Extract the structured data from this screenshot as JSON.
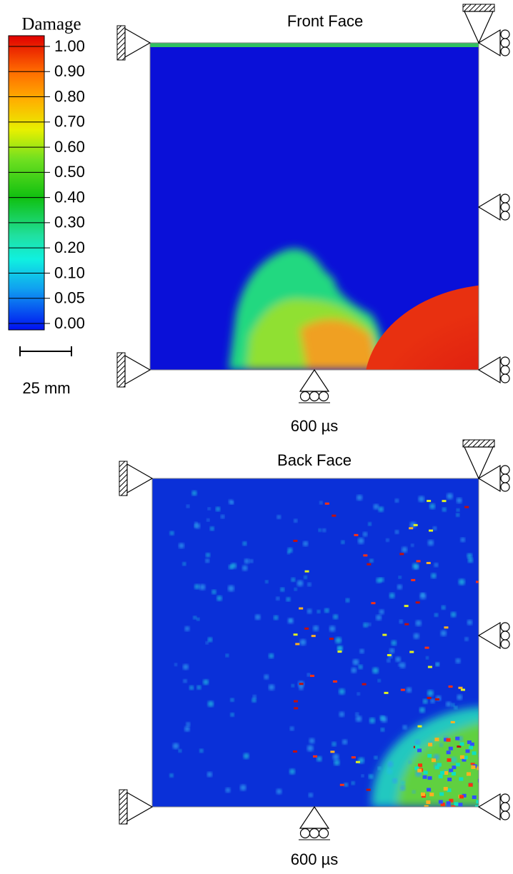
{
  "colorbar": {
    "title": "Damage",
    "labels": [
      "1.00",
      "0.90",
      "0.80",
      "0.70",
      "0.60",
      "0.50",
      "0.40",
      "0.30",
      "0.20",
      "0.10",
      "0.05",
      "0.00"
    ]
  },
  "scale_bar": {
    "label": "25 mm"
  },
  "panels": [
    {
      "title": "Front Face",
      "time": "600 µs"
    },
    {
      "title": "Back Face",
      "time": "600 µs"
    }
  ]
}
